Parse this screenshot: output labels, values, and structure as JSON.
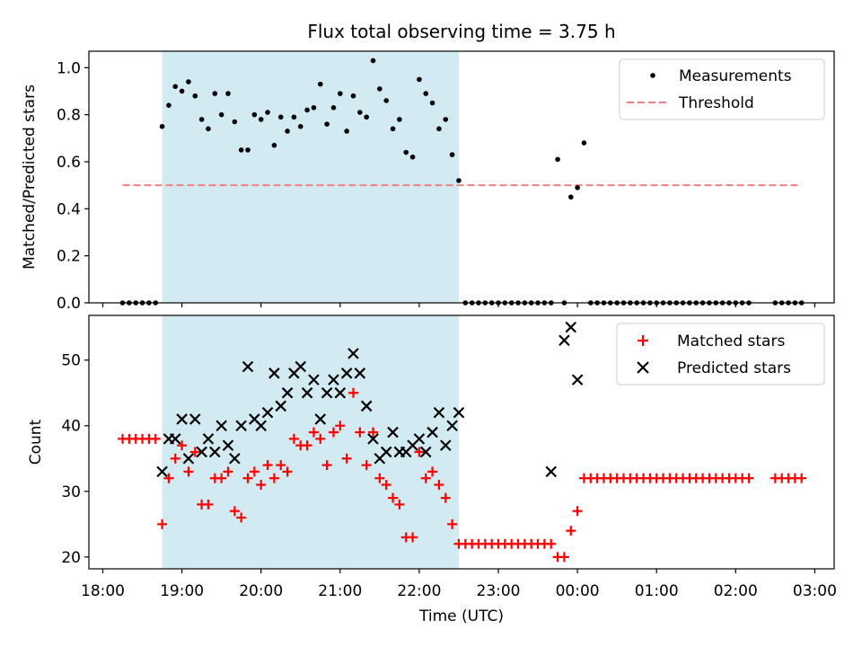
{
  "chart_data": [
    {
      "type": "scatter",
      "title": "Flux total observing time = 3.75 h",
      "ylabel": "Matched/Predicted stars",
      "xlabel": "",
      "ylim": [
        0,
        1.07
      ],
      "yticks": [
        "0.0",
        "0.2",
        "0.4",
        "0.6",
        "0.8",
        "1.0"
      ],
      "ytick_values": [
        0,
        0.2,
        0.4,
        0.6,
        0.8,
        1.0
      ],
      "legend_position": "top-right",
      "shaded_span": {
        "from": "18:45",
        "to": "22:30",
        "color": "#add8e6"
      },
      "threshold": {
        "name": "Threshold",
        "value": 0.5,
        "from": "18:15",
        "to": "02:50",
        "color": "#f08080"
      },
      "series": [
        {
          "name": "Measurements",
          "color": "#000000",
          "marker": "dot",
          "x": [
            "18:15",
            "18:20",
            "18:25",
            "18:30",
            "18:35",
            "18:40",
            "18:45",
            "18:50",
            "18:55",
            "19:00",
            "19:05",
            "19:10",
            "19:15",
            "19:20",
            "19:25",
            "19:30",
            "19:35",
            "19:40",
            "19:45",
            "19:50",
            "19:55",
            "20:00",
            "20:05",
            "20:10",
            "20:15",
            "20:20",
            "20:25",
            "20:30",
            "20:35",
            "20:40",
            "20:45",
            "20:50",
            "20:55",
            "21:00",
            "21:05",
            "21:10",
            "21:15",
            "21:20",
            "21:25",
            "21:30",
            "21:35",
            "21:40",
            "21:45",
            "21:50",
            "21:55",
            "22:00",
            "22:05",
            "22:10",
            "22:15",
            "22:20",
            "22:25",
            "22:30",
            "22:35",
            "22:40",
            "22:45",
            "22:50",
            "22:55",
            "23:00",
            "23:05",
            "23:10",
            "23:15",
            "23:20",
            "23:25",
            "23:30",
            "23:35",
            "23:40",
            "23:45",
            "23:50",
            "23:55",
            "00:00",
            "00:05",
            "00:10",
            "00:15",
            "00:20",
            "00:25",
            "00:30",
            "00:35",
            "00:40",
            "00:45",
            "00:50",
            "00:55",
            "01:00",
            "01:05",
            "01:10",
            "01:15",
            "01:20",
            "01:25",
            "01:30",
            "01:35",
            "01:40",
            "01:45",
            "01:50",
            "01:55",
            "02:00",
            "02:05",
            "02:10",
            "02:30",
            "02:35",
            "02:40",
            "02:45",
            "02:50"
          ],
          "y": [
            0,
            0,
            0,
            0,
            0,
            0,
            0.75,
            0.84,
            0.92,
            0.9,
            0.94,
            0.88,
            0.78,
            0.74,
            0.89,
            0.8,
            0.89,
            0.77,
            0.65,
            0.65,
            0.8,
            0.78,
            0.81,
            0.67,
            0.79,
            0.73,
            0.79,
            0.75,
            0.82,
            0.83,
            0.93,
            0.76,
            0.83,
            0.89,
            0.73,
            0.88,
            0.81,
            0.79,
            1.03,
            0.91,
            0.86,
            0.74,
            0.78,
            0.64,
            0.62,
            0.95,
            0.89,
            0.85,
            0.74,
            0.78,
            0.63,
            0.52,
            0,
            0,
            0,
            0,
            0,
            0,
            0,
            0,
            0,
            0,
            0,
            0,
            0,
            0,
            0.61,
            0,
            0.45,
            0.49,
            0.68,
            0,
            0,
            0,
            0,
            0,
            0,
            0,
            0,
            0,
            0,
            0,
            0,
            0,
            0,
            0,
            0,
            0,
            0,
            0,
            0,
            0,
            0,
            0,
            0,
            0,
            0,
            0,
            0,
            0,
            0
          ]
        }
      ]
    },
    {
      "type": "scatter",
      "xlabel": "Time (UTC)",
      "ylabel": "Count",
      "ylim": [
        18.2,
        56.8
      ],
      "yticks": [
        "20",
        "30",
        "40",
        "50"
      ],
      "ytick_values": [
        20,
        30,
        40,
        50
      ],
      "xticks": [
        "18:00",
        "19:00",
        "20:00",
        "21:00",
        "22:00",
        "23:00",
        "00:00",
        "01:00",
        "02:00",
        "03:00"
      ],
      "legend_position": "top-right",
      "shaded_span": {
        "from": "18:45",
        "to": "22:30",
        "color": "#add8e6"
      },
      "series": [
        {
          "name": "Matched stars",
          "color": "#ff0000",
          "marker": "plus",
          "x": [
            "18:15",
            "18:20",
            "18:25",
            "18:30",
            "18:35",
            "18:40",
            "18:45",
            "18:50",
            "18:55",
            "19:00",
            "19:05",
            "19:10",
            "19:15",
            "19:20",
            "19:25",
            "19:30",
            "19:35",
            "19:40",
            "19:45",
            "19:50",
            "19:55",
            "20:00",
            "20:05",
            "20:10",
            "20:15",
            "20:20",
            "20:25",
            "20:30",
            "20:35",
            "20:40",
            "20:45",
            "20:50",
            "20:55",
            "21:00",
            "21:05",
            "21:10",
            "21:15",
            "21:20",
            "21:25",
            "21:30",
            "21:35",
            "21:40",
            "21:45",
            "21:50",
            "21:55",
            "22:00",
            "22:05",
            "22:10",
            "22:15",
            "22:20",
            "22:25",
            "22:30",
            "22:35",
            "22:40",
            "22:45",
            "22:50",
            "22:55",
            "23:00",
            "23:05",
            "23:10",
            "23:15",
            "23:20",
            "23:25",
            "23:30",
            "23:35",
            "23:40",
            "23:45",
            "23:50",
            "23:55",
            "00:00",
            "00:05",
            "00:10",
            "00:15",
            "00:20",
            "00:25",
            "00:30",
            "00:35",
            "00:40",
            "00:45",
            "00:50",
            "00:55",
            "01:00",
            "01:05",
            "01:10",
            "01:15",
            "01:20",
            "01:25",
            "01:30",
            "01:35",
            "01:40",
            "01:45",
            "01:50",
            "01:55",
            "02:00",
            "02:05",
            "02:10",
            "02:30",
            "02:35",
            "02:40",
            "02:45",
            "02:50"
          ],
          "y": [
            38,
            38,
            38,
            38,
            38,
            38,
            25,
            32,
            35,
            37,
            33,
            36,
            28,
            28,
            32,
            32,
            33,
            27,
            26,
            32,
            33,
            31,
            34,
            32,
            34,
            33,
            38,
            37,
            37,
            39,
            38,
            34,
            39,
            40,
            35,
            45,
            39,
            34,
            39,
            32,
            31,
            29,
            28,
            23,
            23,
            36,
            32,
            33,
            31,
            29,
            25,
            22,
            22,
            22,
            22,
            22,
            22,
            22,
            22,
            22,
            22,
            22,
            22,
            22,
            22,
            22,
            20,
            20,
            24,
            27,
            32,
            32,
            32,
            32,
            32,
            32,
            32,
            32,
            32,
            32,
            32,
            32,
            32,
            32,
            32,
            32,
            32,
            32,
            32,
            32,
            32,
            32,
            32,
            32,
            32,
            32,
            32,
            32,
            32,
            32,
            32
          ]
        },
        {
          "name": "Predicted stars",
          "color": "#000000",
          "marker": "x",
          "x": [
            "18:45",
            "18:50",
            "18:55",
            "19:00",
            "19:05",
            "19:10",
            "19:15",
            "19:20",
            "19:25",
            "19:30",
            "19:35",
            "19:40",
            "19:45",
            "19:50",
            "19:55",
            "20:00",
            "20:05",
            "20:10",
            "20:15",
            "20:20",
            "20:25",
            "20:30",
            "20:35",
            "20:40",
            "20:45",
            "20:50",
            "20:55",
            "21:00",
            "21:05",
            "21:10",
            "21:15",
            "21:20",
            "21:25",
            "21:30",
            "21:35",
            "21:40",
            "21:45",
            "21:50",
            "21:55",
            "22:00",
            "22:05",
            "22:10",
            "22:15",
            "22:20",
            "22:25",
            "22:30",
            "23:40",
            "23:50",
            "23:55",
            "00:00"
          ],
          "y": [
            33,
            38,
            38,
            41,
            35,
            41,
            36,
            38,
            36,
            40,
            37,
            35,
            40,
            49,
            41,
            40,
            42,
            48,
            43,
            45,
            48,
            49,
            45,
            47,
            41,
            45,
            47,
            45,
            48,
            51,
            48,
            43,
            38,
            35,
            36,
            39,
            36,
            36,
            37,
            38,
            36,
            39,
            42,
            37,
            40,
            42,
            33,
            53,
            55,
            47
          ]
        }
      ]
    }
  ]
}
